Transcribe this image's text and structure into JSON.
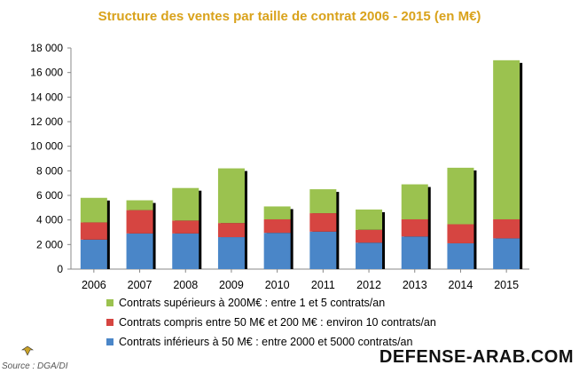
{
  "chart_data": {
    "type": "bar",
    "stacked": true,
    "title": "Structure des ventes par taille de contrat 2006 - 2015 (en M€)",
    "categories": [
      "2006",
      "2007",
      "2008",
      "2009",
      "2010",
      "2011",
      "2012",
      "2013",
      "2014",
      "2015"
    ],
    "series": [
      {
        "name": "Contrats inférieurs à 50 M€ : entre 2000 et 5000 contrats/an",
        "color": "#4a86c8",
        "values": [
          2400,
          2900,
          2900,
          2600,
          2950,
          3050,
          2150,
          2650,
          2100,
          2500
        ]
      },
      {
        "name": "Contrats compris entre 50 M€ et 200 M€ : environ 10 contrats/an",
        "color": "#d64541",
        "values": [
          1400,
          1900,
          1050,
          1150,
          1100,
          1500,
          1050,
          1400,
          1550,
          1550
        ]
      },
      {
        "name": "Contrats supérieurs à 200M€ : entre 1 et 5 contrats/an",
        "color": "#9bc24f",
        "values": [
          2000,
          800,
          2650,
          4450,
          1050,
          1950,
          1650,
          2850,
          4600,
          12950
        ]
      }
    ],
    "ylim": [
      0,
      18000
    ],
    "yticks": [
      0,
      2000,
      4000,
      6000,
      8000,
      10000,
      12000,
      14000,
      16000,
      18000
    ],
    "ytick_labels": [
      "0",
      "2 000",
      "4 000",
      "6 000",
      "8 000",
      "10 000",
      "12 000",
      "14 000",
      "16 000",
      "18 000"
    ],
    "xlabel": "",
    "ylabel": "",
    "grid": false
  },
  "legend_order": [
    2,
    1,
    0
  ],
  "watermark": "DEFENSE-ARAB.COM",
  "source_logo": "Source : DGA/DI"
}
